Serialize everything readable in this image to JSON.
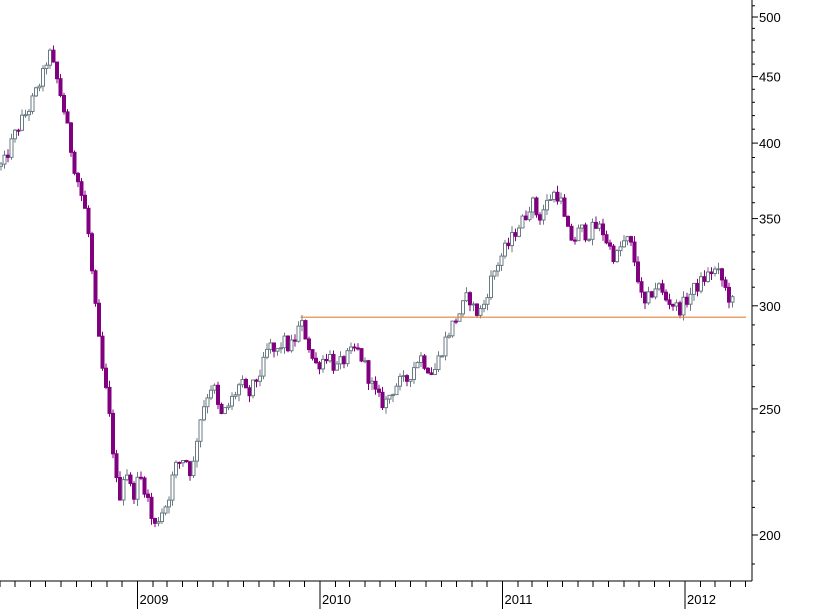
{
  "chart_data": {
    "type": "candlestick",
    "title": "",
    "xlabel": "",
    "ylabel": "",
    "y_scale": "log",
    "ylim": [
      182,
      514
    ],
    "y_ticks": [
      200,
      250,
      300,
      350,
      400,
      450,
      500
    ],
    "x_ticks": [
      "2009",
      "2010",
      "2011",
      "2012"
    ],
    "grid": false,
    "colors": {
      "up": "#6b7b84",
      "down": "#800080",
      "support_line": "#e2833a",
      "axis": "#000000"
    },
    "support_line": {
      "value": 294,
      "from": "2009-11-23",
      "to": "2012-04-09"
    },
    "weekly_close": [
      [
        "2008-04-07",
        384
      ],
      [
        "2008-05-05",
        410
      ],
      [
        "2008-06-02",
        428
      ],
      [
        "2008-06-30",
        455
      ],
      [
        "2008-07-07",
        472
      ],
      [
        "2008-07-21",
        452
      ],
      [
        "2008-08-04",
        430
      ],
      [
        "2008-08-25",
        388
      ],
      [
        "2008-09-22",
        350
      ],
      [
        "2008-10-06",
        305
      ],
      [
        "2008-10-20",
        272
      ],
      [
        "2008-11-03",
        252
      ],
      [
        "2008-11-17",
        225
      ],
      [
        "2008-11-24",
        212
      ],
      [
        "2008-12-08",
        226
      ],
      [
        "2008-12-22",
        214
      ],
      [
        "2009-01-05",
        222
      ],
      [
        "2009-01-19",
        216
      ],
      [
        "2009-02-02",
        202
      ],
      [
        "2009-02-16",
        208
      ],
      [
        "2009-03-02",
        212
      ],
      [
        "2009-03-16",
        225
      ],
      [
        "2009-04-06",
        230
      ],
      [
        "2009-04-20",
        222
      ],
      [
        "2009-05-04",
        244
      ],
      [
        "2009-05-18",
        255
      ],
      [
        "2009-06-01",
        262
      ],
      [
        "2009-06-15",
        246
      ],
      [
        "2009-06-29",
        250
      ],
      [
        "2009-07-13",
        256
      ],
      [
        "2009-07-27",
        262
      ],
      [
        "2009-08-10",
        255
      ],
      [
        "2009-08-24",
        262
      ],
      [
        "2009-09-07",
        268
      ],
      [
        "2009-09-21",
        280
      ],
      [
        "2009-10-05",
        275
      ],
      [
        "2009-10-19",
        282
      ],
      [
        "2009-11-02",
        278
      ],
      [
        "2009-11-16",
        285
      ],
      [
        "2009-11-23",
        292
      ],
      [
        "2009-12-07",
        282
      ],
      [
        "2009-12-21",
        270
      ],
      [
        "2010-01-04",
        272
      ],
      [
        "2010-01-18",
        276
      ],
      [
        "2010-02-01",
        268
      ],
      [
        "2010-02-15",
        272
      ],
      [
        "2010-03-01",
        275
      ],
      [
        "2010-03-15",
        278
      ],
      [
        "2010-03-29",
        272
      ],
      [
        "2010-04-12",
        262
      ],
      [
        "2010-04-26",
        255
      ],
      [
        "2010-05-10",
        252
      ],
      [
        "2010-05-24",
        258
      ],
      [
        "2010-06-07",
        262
      ],
      [
        "2010-06-21",
        262
      ],
      [
        "2010-07-05",
        268
      ],
      [
        "2010-07-19",
        275
      ],
      [
        "2010-08-02",
        270
      ],
      [
        "2010-08-16",
        266
      ],
      [
        "2010-08-30",
        276
      ],
      [
        "2010-09-13",
        285
      ],
      [
        "2010-09-27",
        292
      ],
      [
        "2010-10-11",
        298
      ],
      [
        "2010-10-25",
        306
      ],
      [
        "2010-11-08",
        296
      ],
      [
        "2010-11-22",
        298
      ],
      [
        "2010-12-06",
        312
      ],
      [
        "2010-12-20",
        322
      ],
      [
        "2011-01-03",
        330
      ],
      [
        "2011-01-17",
        336
      ],
      [
        "2011-01-31",
        345
      ],
      [
        "2011-02-14",
        350
      ],
      [
        "2011-02-28",
        362
      ],
      [
        "2011-03-14",
        350
      ],
      [
        "2011-03-28",
        358
      ],
      [
        "2011-04-11",
        366
      ],
      [
        "2011-04-25",
        365
      ],
      [
        "2011-05-09",
        343
      ],
      [
        "2011-05-23",
        336
      ],
      [
        "2011-06-06",
        344
      ],
      [
        "2011-06-20",
        340
      ],
      [
        "2011-07-04",
        345
      ],
      [
        "2011-07-18",
        344
      ],
      [
        "2011-08-01",
        334
      ],
      [
        "2011-08-15",
        326
      ],
      [
        "2011-08-29",
        335
      ],
      [
        "2011-09-12",
        337
      ],
      [
        "2011-09-26",
        320
      ],
      [
        "2011-10-10",
        298
      ],
      [
        "2011-10-24",
        306
      ],
      [
        "2011-11-07",
        312
      ],
      [
        "2011-11-21",
        304
      ],
      [
        "2011-12-05",
        302
      ],
      [
        "2011-12-19",
        298
      ],
      [
        "2012-01-02",
        302
      ],
      [
        "2012-01-16",
        308
      ],
      [
        "2012-01-30",
        312
      ],
      [
        "2012-02-13",
        316
      ],
      [
        "2012-02-27",
        320
      ],
      [
        "2012-03-12",
        316
      ],
      [
        "2012-03-26",
        306
      ],
      [
        "2012-04-09",
        300
      ]
    ]
  }
}
